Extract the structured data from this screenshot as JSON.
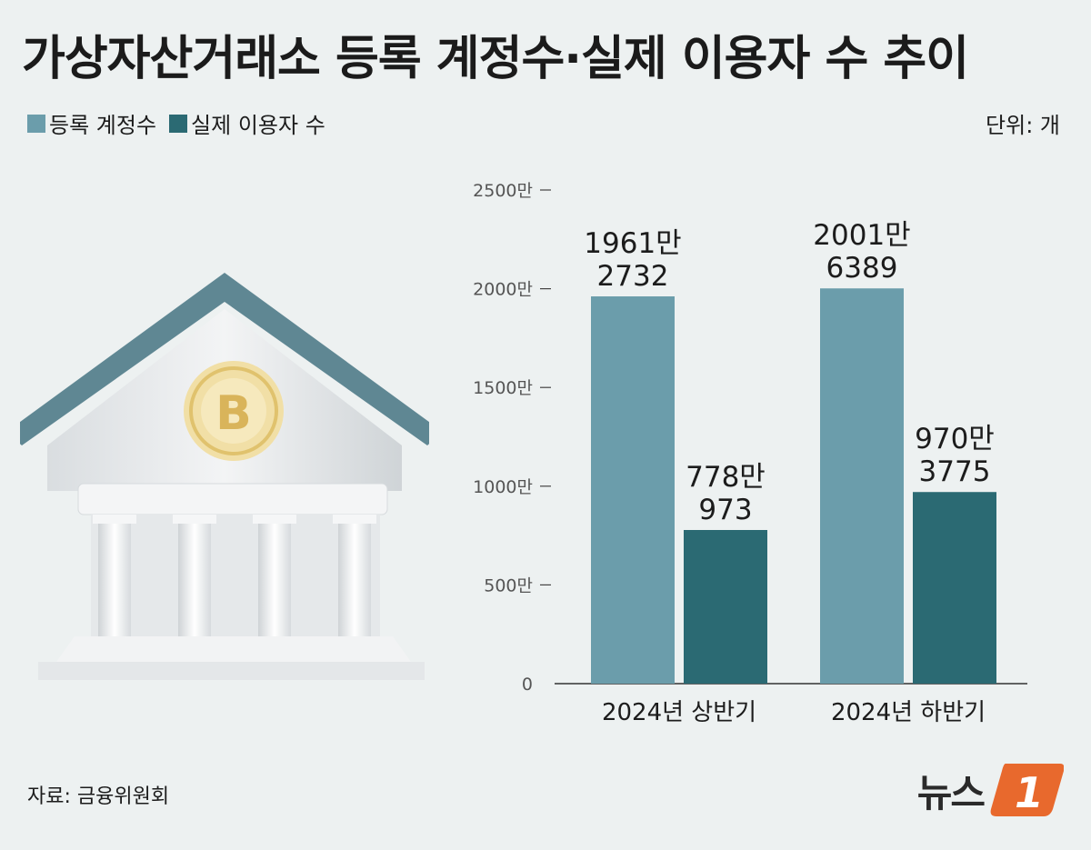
{
  "title": "가상자산거래소 등록 계정수·실제 이용자 수 추이",
  "unit": "단위: 개",
  "source": "자료: 금융위원회",
  "logo": {
    "text": "뉴스",
    "mark": "1"
  },
  "bank_icon": {
    "letter": "B"
  },
  "chart_data": {
    "type": "bar",
    "categories": [
      "2024년 상반기",
      "2024년 하반기"
    ],
    "series": [
      {
        "name": "등록 계정수",
        "color": "#6b9dab",
        "values": [
          19612732,
          20016389
        ],
        "labels": [
          [
            "1961만",
            "2732"
          ],
          [
            "2001만",
            "6389"
          ]
        ]
      },
      {
        "name": "실제 이용자 수",
        "color": "#2b6a73",
        "values": [
          7780973,
          9703775
        ],
        "labels": [
          [
            "778만",
            "973"
          ],
          [
            "970만",
            "3775"
          ]
        ]
      }
    ],
    "y_ticks": [
      0,
      5000000,
      10000000,
      15000000,
      20000000,
      25000000
    ],
    "y_tick_labels": [
      "0",
      "500만",
      "1000만",
      "1500만",
      "2000만",
      "2500만"
    ],
    "ylim": [
      0,
      25000000
    ]
  }
}
